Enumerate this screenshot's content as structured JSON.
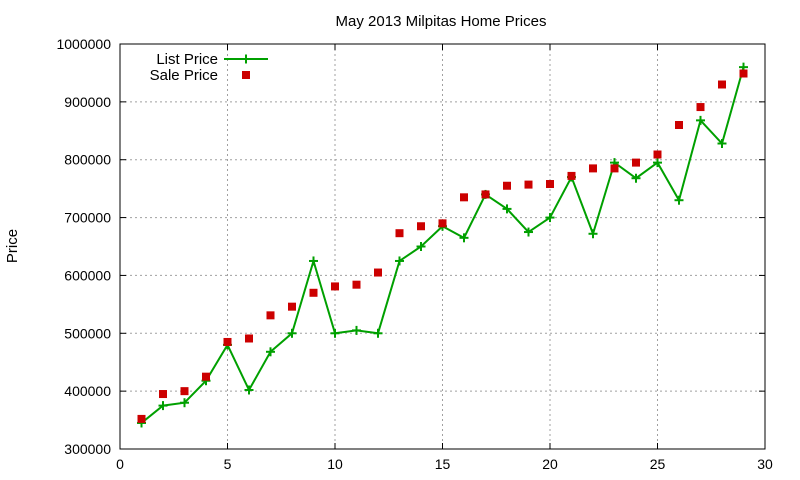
{
  "chart_data": {
    "type": "line",
    "title": "May 2013 Milpitas Home Prices",
    "xlabel": "",
    "ylabel": "Price",
    "xlim": [
      0,
      30
    ],
    "ylim": [
      300000,
      1000000
    ],
    "xticks": [
      0,
      5,
      10,
      15,
      20,
      25,
      30
    ],
    "yticks": [
      300000,
      400000,
      500000,
      600000,
      700000,
      800000,
      900000,
      1000000
    ],
    "grid": true,
    "legend": "top-left",
    "series": [
      {
        "name": "List Price",
        "style": "line+plus",
        "color": "#00a000",
        "x": [
          1,
          2,
          3,
          4,
          5,
          6,
          7,
          8,
          9,
          10,
          11,
          12,
          13,
          14,
          15,
          16,
          17,
          18,
          19,
          20,
          21,
          22,
          23,
          24,
          25,
          26,
          27,
          28,
          29
        ],
        "y": [
          345000,
          375000,
          380000,
          418000,
          480000,
          402000,
          468000,
          500000,
          625000,
          500000,
          505000,
          500000,
          625000,
          650000,
          685000,
          665000,
          740000,
          715000,
          675000,
          700000,
          770000,
          672000,
          795000,
          768000,
          795000,
          730000,
          868000,
          828000,
          960000
        ]
      },
      {
        "name": "Sale Price",
        "style": "square",
        "color": "#cc0000",
        "x": [
          1,
          2,
          3,
          4,
          5,
          6,
          7,
          8,
          9,
          10,
          11,
          12,
          13,
          14,
          15,
          16,
          17,
          18,
          19,
          20,
          21,
          22,
          23,
          24,
          25,
          26,
          27,
          28,
          29
        ],
        "y": [
          352000,
          395000,
          400000,
          425000,
          485000,
          491000,
          531000,
          546000,
          570000,
          581000,
          584000,
          605000,
          673000,
          685000,
          690000,
          735000,
          740000,
          755000,
          757000,
          758000,
          772000,
          785000,
          785000,
          795000,
          809000,
          860000,
          891000,
          930000,
          949000
        ]
      }
    ]
  }
}
